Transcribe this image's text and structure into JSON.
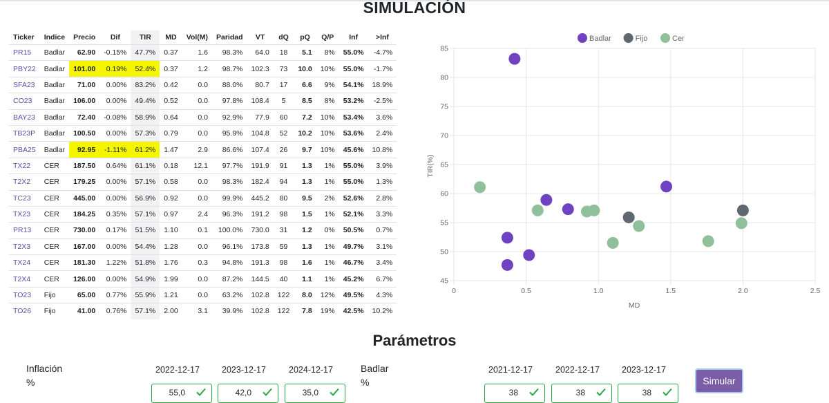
{
  "title": "SIMULACIÓN",
  "table": {
    "headers": [
      "Ticker",
      "Indice",
      "Precio",
      "Dif",
      "TIR",
      "MD",
      "Vol(M)",
      "Paridad",
      "VT",
      "dQ",
      "pQ",
      "Q/P",
      "Inf",
      ">Inf"
    ],
    "rows": [
      [
        "PR15",
        "Badlar",
        "62.90",
        "-0.15%",
        "47.7%",
        "0.37",
        "1.6",
        "98.3%",
        "64.0",
        "18",
        "5.1",
        "8%",
        "55.0%",
        "-4.7%"
      ],
      [
        "PBY22",
        "Badlar",
        "101.00",
        "0.19%",
        "52.4%",
        "0.37",
        "1.2",
        "98.7%",
        "102.3",
        "73",
        "10.0",
        "10%",
        "55.0%",
        "-1.7%"
      ],
      [
        "SFA23",
        "Badlar",
        "71.00",
        "0.00%",
        "83.2%",
        "0.42",
        "0.0",
        "88.0%",
        "80.7",
        "17",
        "6.6",
        "9%",
        "54.1%",
        "18.9%"
      ],
      [
        "CO23",
        "Badlar",
        "106.00",
        "0.00%",
        "49.4%",
        "0.52",
        "0.0",
        "97.8%",
        "108.4",
        "5",
        "8.5",
        "8%",
        "53.2%",
        "-2.5%"
      ],
      [
        "BAY23",
        "Badlar",
        "72.40",
        "-0.08%",
        "58.9%",
        "0.64",
        "0.0",
        "92.9%",
        "77.9",
        "60",
        "7.2",
        "10%",
        "53.4%",
        "3.6%"
      ],
      [
        "TB23P",
        "Badlar",
        "100.50",
        "0.00%",
        "57.3%",
        "0.79",
        "0.0",
        "95.9%",
        "104.8",
        "52",
        "10.2",
        "10%",
        "53.6%",
        "2.4%"
      ],
      [
        "PBA25",
        "Badlar",
        "92.95",
        "-1.11%",
        "61.2%",
        "1.47",
        "2.9",
        "86.6%",
        "107.4",
        "26",
        "9.7",
        "10%",
        "45.6%",
        "10.8%"
      ],
      [
        "TX22",
        "CER",
        "187.50",
        "0.64%",
        "61.1%",
        "0.18",
        "12.1",
        "97.7%",
        "191.9",
        "91",
        "1.3",
        "1%",
        "55.0%",
        "3.9%"
      ],
      [
        "T2X2",
        "CER",
        "179.25",
        "0.00%",
        "57.1%",
        "0.58",
        "0.0",
        "98.3%",
        "182.4",
        "94",
        "1.3",
        "1%",
        "55.0%",
        "1.3%"
      ],
      [
        "TC23",
        "CER",
        "445.00",
        "0.00%",
        "56.9%",
        "0.92",
        "0.0",
        "99.9%",
        "445.2",
        "80",
        "9.5",
        "2%",
        "52.6%",
        "2.8%"
      ],
      [
        "TX23",
        "CER",
        "184.25",
        "0.35%",
        "57.1%",
        "0.97",
        "2.4",
        "96.3%",
        "191.2",
        "98",
        "1.5",
        "1%",
        "52.1%",
        "3.3%"
      ],
      [
        "PR13",
        "CER",
        "730.00",
        "0.17%",
        "51.5%",
        "1.10",
        "0.1",
        "100.0%",
        "730.0",
        "31",
        "1.2",
        "0%",
        "50.5%",
        "0.7%"
      ],
      [
        "T2X3",
        "CER",
        "167.00",
        "0.00%",
        "54.4%",
        "1.28",
        "0.0",
        "96.1%",
        "173.8",
        "59",
        "1.3",
        "1%",
        "49.7%",
        "3.1%"
      ],
      [
        "TX24",
        "CER",
        "181.30",
        "1.22%",
        "51.8%",
        "1.76",
        "0.3",
        "94.8%",
        "191.3",
        "98",
        "1.6",
        "1%",
        "46.7%",
        "3.4%"
      ],
      [
        "T2X4",
        "CER",
        "126.00",
        "0.00%",
        "54.9%",
        "1.99",
        "0.0",
        "87.2%",
        "144.5",
        "40",
        "1.1",
        "1%",
        "45.2%",
        "6.7%"
      ],
      [
        "TO23",
        "Fijo",
        "65.00",
        "0.77%",
        "55.9%",
        "1.21",
        "0.0",
        "63.2%",
        "102.8",
        "122",
        "8.0",
        "12%",
        "49.5%",
        "4.3%"
      ],
      [
        "TO26",
        "Fijo",
        "41.00",
        "0.76%",
        "57.1%",
        "2.00",
        "3.1",
        "39.9%",
        "102.8",
        "122",
        "7.8",
        "19%",
        "42.5%",
        "10.2%"
      ]
    ]
  },
  "chart_data": {
    "type": "scatter",
    "xlabel": "MD",
    "ylabel": "TIR(%)",
    "xlim": [
      0,
      2.5
    ],
    "ylim": [
      45,
      85
    ],
    "xticks": [
      "0",
      "0.5",
      "1.0",
      "1.5",
      "2.0",
      "2.5"
    ],
    "yticks": [
      "45",
      "50",
      "55",
      "60",
      "65",
      "70",
      "75",
      "80",
      "85"
    ],
    "grid": true,
    "legend": "top-center",
    "series": [
      {
        "name": "Badlar",
        "color": "#6f42c1",
        "points": [
          [
            0.37,
            47.7
          ],
          [
            0.37,
            52.4
          ],
          [
            0.42,
            83.2
          ],
          [
            0.52,
            49.4
          ],
          [
            0.64,
            58.9
          ],
          [
            0.79,
            57.3
          ],
          [
            1.47,
            61.2
          ]
        ]
      },
      {
        "name": "Fijo",
        "color": "#5f6770",
        "points": [
          [
            1.21,
            55.9
          ],
          [
            2.0,
            57.1
          ]
        ]
      },
      {
        "name": "Cer",
        "color": "#8fc09a",
        "points": [
          [
            0.18,
            61.1
          ],
          [
            0.58,
            57.1
          ],
          [
            0.92,
            56.9
          ],
          [
            0.97,
            57.1
          ],
          [
            1.1,
            51.5
          ],
          [
            1.28,
            54.4
          ],
          [
            1.76,
            51.8
          ],
          [
            1.99,
            54.9
          ]
        ]
      }
    ]
  },
  "params": {
    "title": "Parámetros",
    "inflacion": {
      "label_line1": "Inflación",
      "label_line2": "%",
      "dates": [
        "2022-12-17",
        "2023-12-17",
        "2024-12-17"
      ],
      "values": [
        "55,0",
        "42,0",
        "35,0"
      ]
    },
    "badlar": {
      "label_line1": "Badlar",
      "label_line2": "%",
      "dates": [
        "2021-12-17",
        "2022-12-17",
        "2023-12-17"
      ],
      "values": [
        "38",
        "38",
        "38"
      ]
    },
    "simular_label": "Simular"
  }
}
